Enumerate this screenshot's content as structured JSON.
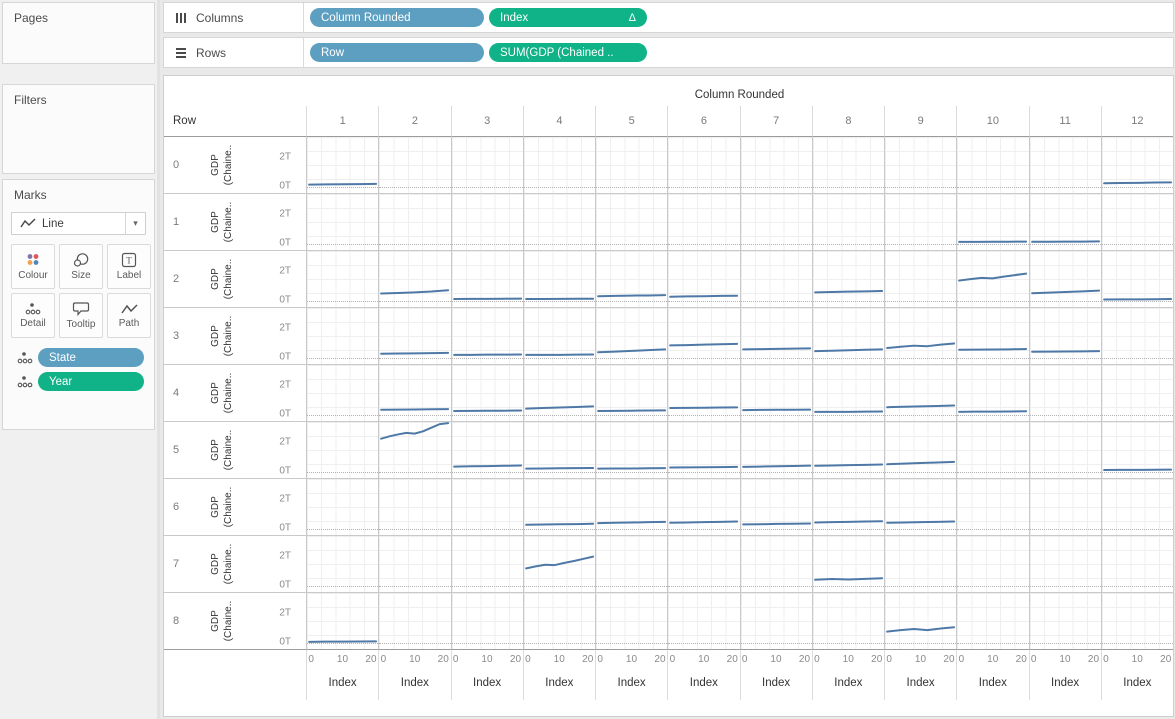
{
  "sidebar": {
    "pages_label": "Pages",
    "filters_label": "Filters",
    "marks": {
      "title": "Marks",
      "mark_type": "Line",
      "buttons": [
        {
          "label": "Colour",
          "icon": "colour-icon"
        },
        {
          "label": "Size",
          "icon": "size-icon"
        },
        {
          "label": "Label",
          "icon": "label-icon"
        },
        {
          "label": "Detail",
          "icon": "detail-icon"
        },
        {
          "label": "Tooltip",
          "icon": "tooltip-icon"
        },
        {
          "label": "Path",
          "icon": "path-icon"
        }
      ],
      "pills": [
        {
          "label": "State",
          "type": "dimension"
        },
        {
          "label": "Year",
          "type": "measure"
        }
      ]
    }
  },
  "shelves": {
    "columns_label": "Columns",
    "rows_label": "Rows",
    "columns_pills": [
      {
        "label": "Column Rounded",
        "type": "dimension"
      },
      {
        "label": "Index",
        "type": "measure",
        "delta": true
      }
    ],
    "rows_pills": [
      {
        "label": "Row",
        "type": "dimension"
      },
      {
        "label": "SUM(GDP (Chained ..",
        "type": "measure"
      }
    ]
  },
  "colors": {
    "dimension_pill": "#5c9fc0",
    "measure_pill": "#10b287",
    "line": "#4e79a7",
    "colour_icon_dots": [
      "#8074a8",
      "#e15759",
      "#f0a04f",
      "#5586bb"
    ]
  },
  "chart_data": {
    "type": "line",
    "title": "Column Rounded",
    "row_header_label": "Row",
    "column_labels": [
      "1",
      "2",
      "3",
      "4",
      "5",
      "6",
      "7",
      "8",
      "9",
      "10",
      "11",
      "12"
    ],
    "row_labels": [
      "0",
      "1",
      "2",
      "3",
      "4",
      "5",
      "6",
      "7",
      "8"
    ],
    "y_axis": {
      "label_lines": [
        "GDP",
        "(Chaine.."
      ],
      "ticks": [
        "2T",
        "0T"
      ],
      "tick_values": [
        2,
        0
      ],
      "units": "trillions"
    },
    "x_axis": {
      "label": "Index",
      "ticks": [
        "0",
        "10",
        "20"
      ],
      "range": [
        0,
        20
      ]
    },
    "series": [
      {
        "r": 0,
        "c": 1,
        "v": [
          0.18,
          0.19,
          0.2,
          0.21,
          0.22
        ]
      },
      {
        "r": 0,
        "c": 12,
        "v": [
          0.26,
          0.28,
          0.29,
          0.31,
          0.32
        ]
      },
      {
        "r": 1,
        "c": 10,
        "v": [
          0.16,
          0.16,
          0.17,
          0.17,
          0.18
        ]
      },
      {
        "r": 1,
        "c": 11,
        "v": [
          0.17,
          0.17,
          0.18,
          0.18,
          0.19
        ]
      },
      {
        "r": 2,
        "c": 2,
        "v": [
          0.5,
          0.54,
          0.58,
          0.63,
          0.71
        ]
      },
      {
        "r": 2,
        "c": 3,
        "v": [
          0.15,
          0.16,
          0.16,
          0.17,
          0.18
        ]
      },
      {
        "r": 2,
        "c": 4,
        "v": [
          0.15,
          0.15,
          0.16,
          0.17,
          0.17
        ]
      },
      {
        "r": 2,
        "c": 5,
        "v": [
          0.33,
          0.35,
          0.37,
          0.38,
          0.4
        ]
      },
      {
        "r": 2,
        "c": 6,
        "v": [
          0.3,
          0.32,
          0.33,
          0.35,
          0.36
        ]
      },
      {
        "r": 2,
        "c": 8,
        "v": [
          0.58,
          0.6,
          0.62,
          0.64,
          0.66
        ]
      },
      {
        "r": 2,
        "c": 10,
        "v": [
          1.33,
          1.42,
          1.5,
          1.47,
          1.58,
          1.68,
          1.77
        ]
      },
      {
        "r": 2,
        "c": 11,
        "v": [
          0.52,
          0.56,
          0.6,
          0.64,
          0.69
        ]
      },
      {
        "r": 2,
        "c": 12,
        "v": [
          0.12,
          0.13,
          0.13,
          0.14,
          0.15
        ]
      },
      {
        "r": 3,
        "c": 2,
        "v": [
          0.3,
          0.31,
          0.32,
          0.34,
          0.35
        ]
      },
      {
        "r": 3,
        "c": 3,
        "v": [
          0.22,
          0.23,
          0.24,
          0.24,
          0.25
        ]
      },
      {
        "r": 3,
        "c": 4,
        "v": [
          0.22,
          0.22,
          0.23,
          0.24,
          0.25
        ]
      },
      {
        "r": 3,
        "c": 5,
        "v": [
          0.39,
          0.43,
          0.48,
          0.53,
          0.58
        ]
      },
      {
        "r": 3,
        "c": 6,
        "v": [
          0.83,
          0.85,
          0.88,
          0.9,
          0.93
        ]
      },
      {
        "r": 3,
        "c": 7,
        "v": [
          0.58,
          0.59,
          0.61,
          0.62,
          0.64
        ]
      },
      {
        "r": 3,
        "c": 8,
        "v": [
          0.46,
          0.49,
          0.52,
          0.55,
          0.58
        ]
      },
      {
        "r": 3,
        "c": 9,
        "v": [
          0.66,
          0.74,
          0.81,
          0.78,
          0.88,
          0.95
        ]
      },
      {
        "r": 3,
        "c": 10,
        "v": [
          0.55,
          0.56,
          0.57,
          0.58,
          0.6
        ]
      },
      {
        "r": 3,
        "c": 11,
        "v": [
          0.42,
          0.43,
          0.44,
          0.45,
          0.46
        ]
      },
      {
        "r": 4,
        "c": 2,
        "v": [
          0.36,
          0.37,
          0.38,
          0.39,
          0.4
        ]
      },
      {
        "r": 4,
        "c": 3,
        "v": [
          0.28,
          0.29,
          0.3,
          0.3,
          0.31
        ]
      },
      {
        "r": 4,
        "c": 4,
        "v": [
          0.43,
          0.47,
          0.5,
          0.54,
          0.58
        ]
      },
      {
        "r": 4,
        "c": 5,
        "v": [
          0.28,
          0.29,
          0.3,
          0.31,
          0.32
        ]
      },
      {
        "r": 4,
        "c": 6,
        "v": [
          0.47,
          0.48,
          0.49,
          0.5,
          0.51
        ]
      },
      {
        "r": 4,
        "c": 7,
        "v": [
          0.34,
          0.35,
          0.36,
          0.36,
          0.37
        ]
      },
      {
        "r": 4,
        "c": 8,
        "v": [
          0.22,
          0.23,
          0.23,
          0.24,
          0.25
        ]
      },
      {
        "r": 4,
        "c": 9,
        "v": [
          0.52,
          0.55,
          0.58,
          0.6,
          0.63
        ]
      },
      {
        "r": 4,
        "c": 10,
        "v": [
          0.23,
          0.24,
          0.24,
          0.25,
          0.26
        ]
      },
      {
        "r": 5,
        "c": 2,
        "v": [
          2.15,
          2.3,
          2.42,
          2.52,
          2.47,
          2.62,
          2.85,
          3.08,
          3.28
        ]
      },
      {
        "r": 5,
        "c": 3,
        "v": [
          0.37,
          0.39,
          0.4,
          0.42,
          0.44
        ]
      },
      {
        "r": 5,
        "c": 4,
        "v": [
          0.24,
          0.25,
          0.26,
          0.27,
          0.28
        ]
      },
      {
        "r": 5,
        "c": 5,
        "v": [
          0.24,
          0.25,
          0.25,
          0.26,
          0.27
        ]
      },
      {
        "r": 5,
        "c": 6,
        "v": [
          0.31,
          0.32,
          0.33,
          0.34,
          0.35
        ]
      },
      {
        "r": 5,
        "c": 7,
        "v": [
          0.35,
          0.37,
          0.39,
          0.41,
          0.43
        ]
      },
      {
        "r": 5,
        "c": 8,
        "v": [
          0.42,
          0.44,
          0.46,
          0.48,
          0.5
        ]
      },
      {
        "r": 5,
        "c": 9,
        "v": [
          0.52,
          0.56,
          0.6,
          0.63,
          0.67
        ]
      },
      {
        "r": 5,
        "c": 12,
        "v": [
          0.15,
          0.16,
          0.16,
          0.17,
          0.18
        ]
      },
      {
        "r": 6,
        "c": 4,
        "v": [
          0.3,
          0.31,
          0.33,
          0.34,
          0.36
        ]
      },
      {
        "r": 6,
        "c": 5,
        "v": [
          0.4,
          0.42,
          0.44,
          0.46,
          0.48
        ]
      },
      {
        "r": 6,
        "c": 6,
        "v": [
          0.42,
          0.44,
          0.46,
          0.48,
          0.5
        ]
      },
      {
        "r": 6,
        "c": 7,
        "v": [
          0.32,
          0.33,
          0.35,
          0.36,
          0.38
        ]
      },
      {
        "r": 6,
        "c": 8,
        "v": [
          0.44,
          0.46,
          0.48,
          0.5,
          0.52
        ]
      },
      {
        "r": 6,
        "c": 9,
        "v": [
          0.42,
          0.44,
          0.46,
          0.48,
          0.5
        ]
      },
      {
        "r": 7,
        "c": 4,
        "v": [
          1.15,
          1.28,
          1.38,
          1.36,
          1.5,
          1.62,
          1.76,
          1.9
        ]
      },
      {
        "r": 7,
        "c": 8,
        "v": [
          0.42,
          0.47,
          0.44,
          0.48,
          0.52
        ]
      },
      {
        "r": 8,
        "c": 1,
        "v": [
          0.1,
          0.11,
          0.11,
          0.12,
          0.13
        ]
      },
      {
        "r": 8,
        "c": 9,
        "v": [
          0.75,
          0.85,
          0.92,
          0.85,
          0.95,
          1.03
        ]
      }
    ]
  }
}
